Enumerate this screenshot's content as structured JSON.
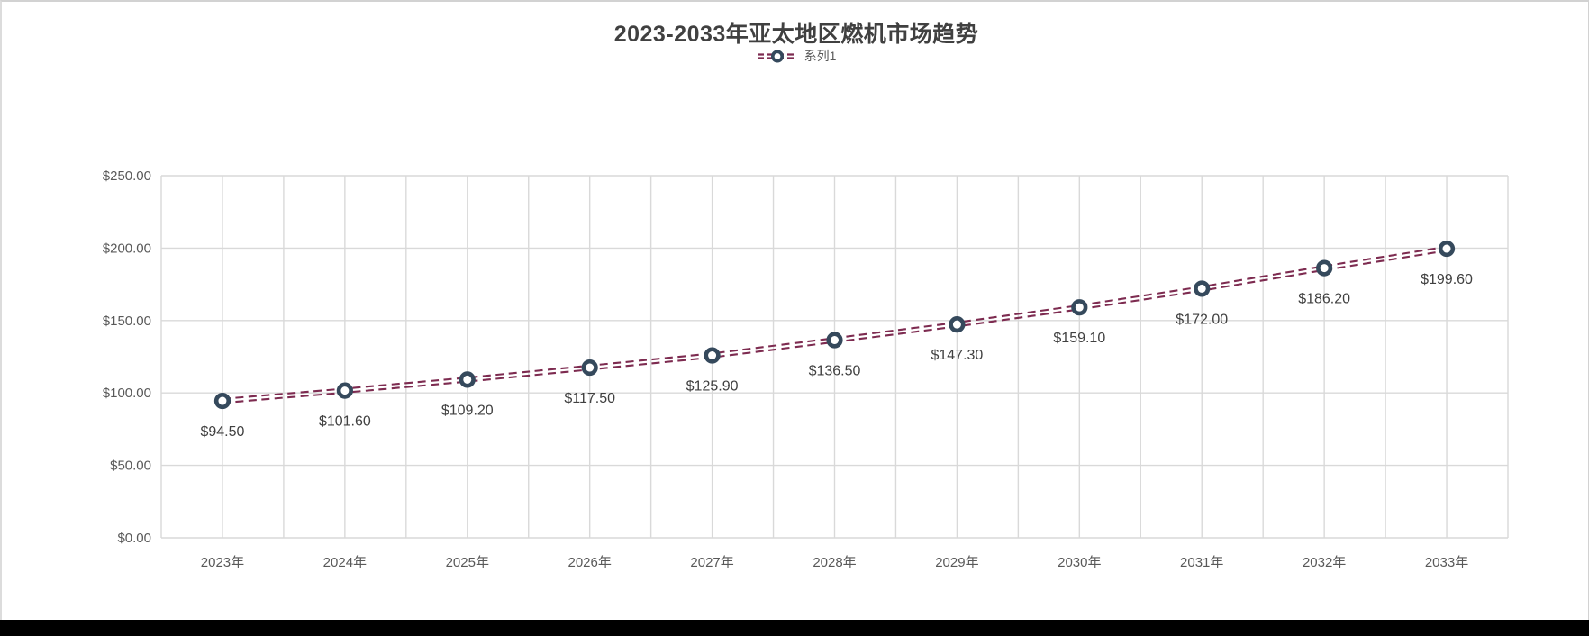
{
  "window": {
    "panel_background": "#ffffff",
    "bottom_bar_color": "#000000",
    "panel_border_color": "#d2d2d2"
  },
  "chart_data": {
    "type": "line",
    "title": "2023-2033年亚太地区燃机市场趋势",
    "legend": {
      "position": "top",
      "entries": [
        "系列1"
      ]
    },
    "categories": [
      "2023年",
      "2024年",
      "2025年",
      "2026年",
      "2027年",
      "2028年",
      "2029年",
      "2030年",
      "2031年",
      "2032年",
      "2033年"
    ],
    "series": [
      {
        "name": "系列1",
        "values": [
          94.5,
          101.6,
          109.2,
          117.5,
          125.9,
          136.5,
          147.3,
          159.1,
          172.0,
          186.2,
          199.6
        ],
        "data_labels": [
          "$94.50",
          "$101.60",
          "$109.20",
          "$117.50",
          "$125.90",
          "$136.50",
          "$147.30",
          "$159.10",
          "$172.00",
          "$186.20",
          "$199.60"
        ],
        "line_style": "double-dashed",
        "marker": "circle"
      }
    ],
    "y_axis": {
      "min": 0,
      "max": 250,
      "step": 50,
      "tick_labels": [
        "$0.00",
        "$50.00",
        "$100.00",
        "$150.00",
        "$200.00",
        "$250.00"
      ]
    },
    "x_axis": {
      "label_suffix": "年"
    },
    "grid": {
      "horizontal": true,
      "vertical": true,
      "vertical_every_half_category": true
    },
    "colors": {
      "line": "#7d2b50",
      "marker_stroke": "#35495c",
      "marker_fill": "#ffffff",
      "grid": "#d9d9d9",
      "axis_text": "#595959",
      "title": "#404040",
      "data_label": "#404040",
      "legend_text": "#595959"
    }
  }
}
